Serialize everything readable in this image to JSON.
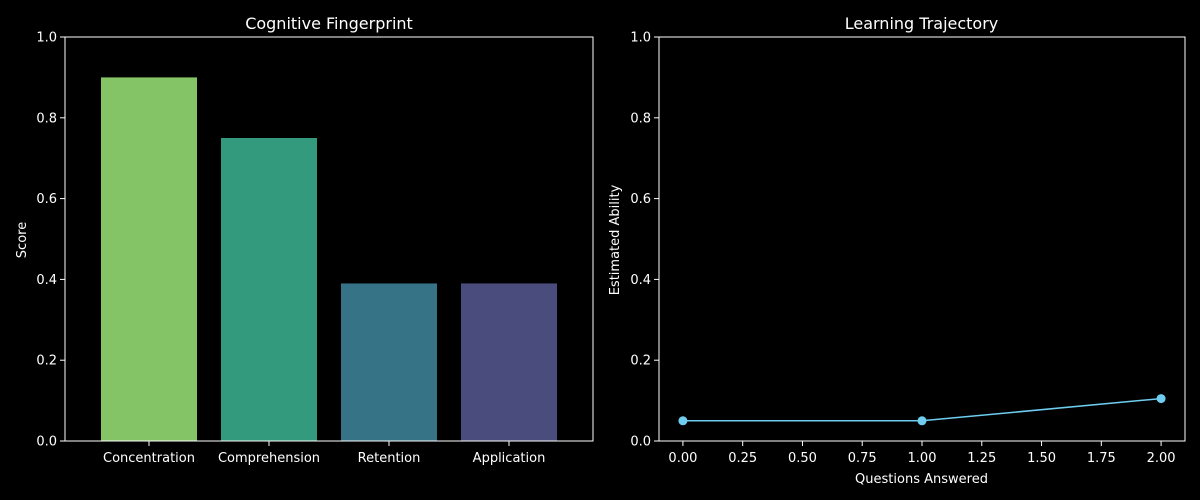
{
  "chart_data": [
    {
      "type": "bar",
      "title": "Cognitive Fingerprint",
      "xlabel": "",
      "ylabel": "Score",
      "categories": [
        "Concentration",
        "Comprehension",
        "Retention",
        "Application"
      ],
      "values": [
        0.9,
        0.75,
        0.39,
        0.39
      ],
      "colors": [
        "#84c466",
        "#339a7e",
        "#377386",
        "#4a4c7e"
      ],
      "ylim": [
        0,
        1.0
      ],
      "yticks": [
        "0.0",
        "0.2",
        "0.4",
        "0.6",
        "0.8",
        "1.0"
      ],
      "grid": false,
      "legend": "none"
    },
    {
      "type": "line",
      "title": "Learning Trajectory",
      "xlabel": "Questions Answered",
      "ylabel": "Estimated Ability",
      "x": [
        0,
        1,
        2
      ],
      "y": [
        0.05,
        0.05,
        0.105
      ],
      "color": "#6fcdf0",
      "xlim": [
        -0.1,
        2.1
      ],
      "ylim": [
        0,
        1.0
      ],
      "xticks": [
        "0.00",
        "0.25",
        "0.50",
        "0.75",
        "1.00",
        "1.25",
        "1.50",
        "1.75",
        "2.00"
      ],
      "yticks": [
        "0.0",
        "0.2",
        "0.4",
        "0.6",
        "0.8",
        "1.0"
      ],
      "grid": false,
      "legend": "none"
    }
  ],
  "colors": {
    "background": "#000000",
    "foreground": "#ffffff"
  }
}
